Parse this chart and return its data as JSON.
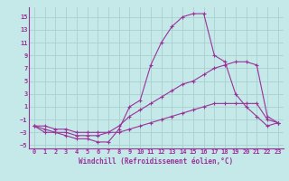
{
  "xlabel": "Windchill (Refroidissement éolien,°C)",
  "ylabel": "",
  "background_color": "#c5e8e8",
  "grid_color": "#aad0d0",
  "line_color": "#993399",
  "xlim": [
    -0.5,
    23.5
  ],
  "ylim": [
    -5.5,
    16.5
  ],
  "xticks": [
    0,
    1,
    2,
    3,
    4,
    5,
    6,
    7,
    8,
    9,
    10,
    11,
    12,
    13,
    14,
    15,
    16,
    17,
    18,
    19,
    20,
    21,
    22,
    23
  ],
  "yticks": [
    -5,
    -3,
    -1,
    1,
    3,
    5,
    7,
    9,
    11,
    13,
    15
  ],
  "line1_x": [
    0,
    1,
    2,
    3,
    4,
    5,
    6,
    7,
    8,
    9,
    10,
    11,
    12,
    13,
    14,
    15,
    16,
    17,
    18,
    19,
    20,
    21,
    22,
    23
  ],
  "line1_y": [
    -2,
    -3,
    -3,
    -3.5,
    -4,
    -4,
    -4.5,
    -4.5,
    -2.5,
    1,
    2,
    7.5,
    11,
    13.5,
    15,
    15.5,
    15.5,
    9,
    8,
    3,
    1,
    -0.5,
    -2,
    -1.5
  ],
  "line2_x": [
    0,
    1,
    2,
    3,
    4,
    5,
    6,
    7,
    8,
    9,
    10,
    11,
    12,
    13,
    14,
    15,
    16,
    17,
    18,
    19,
    20,
    21,
    22,
    23
  ],
  "line2_y": [
    -2,
    -2.5,
    -3,
    -3,
    -3.5,
    -3.5,
    -3.5,
    -3,
    -2,
    -0.5,
    0.5,
    1.5,
    2.5,
    3.5,
    4.5,
    5,
    6,
    7,
    7.5,
    8,
    8,
    7.5,
    -0.5,
    -1.5
  ],
  "line3_x": [
    0,
    1,
    2,
    3,
    4,
    5,
    6,
    7,
    8,
    9,
    10,
    11,
    12,
    13,
    14,
    15,
    16,
    17,
    18,
    19,
    20,
    21,
    22,
    23
  ],
  "line3_y": [
    -2,
    -2,
    -2.5,
    -2.5,
    -3,
    -3,
    -3,
    -3,
    -3,
    -2.5,
    -2,
    -1.5,
    -1,
    -0.5,
    0,
    0.5,
    1,
    1.5,
    1.5,
    1.5,
    1.5,
    1.5,
    -1,
    -1.5
  ],
  "tick_fontsize": 5,
  "xlabel_fontsize": 5.5
}
